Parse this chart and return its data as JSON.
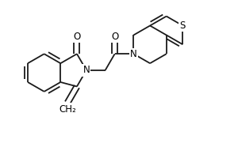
{
  "background_color": "#ffffff",
  "line_color": "#1a1a1a",
  "lw": 1.3,
  "figsize": [
    3.0,
    2.0
  ],
  "dpi": 100,
  "xlim": [
    0,
    300
  ],
  "ylim": [
    0,
    200
  ]
}
